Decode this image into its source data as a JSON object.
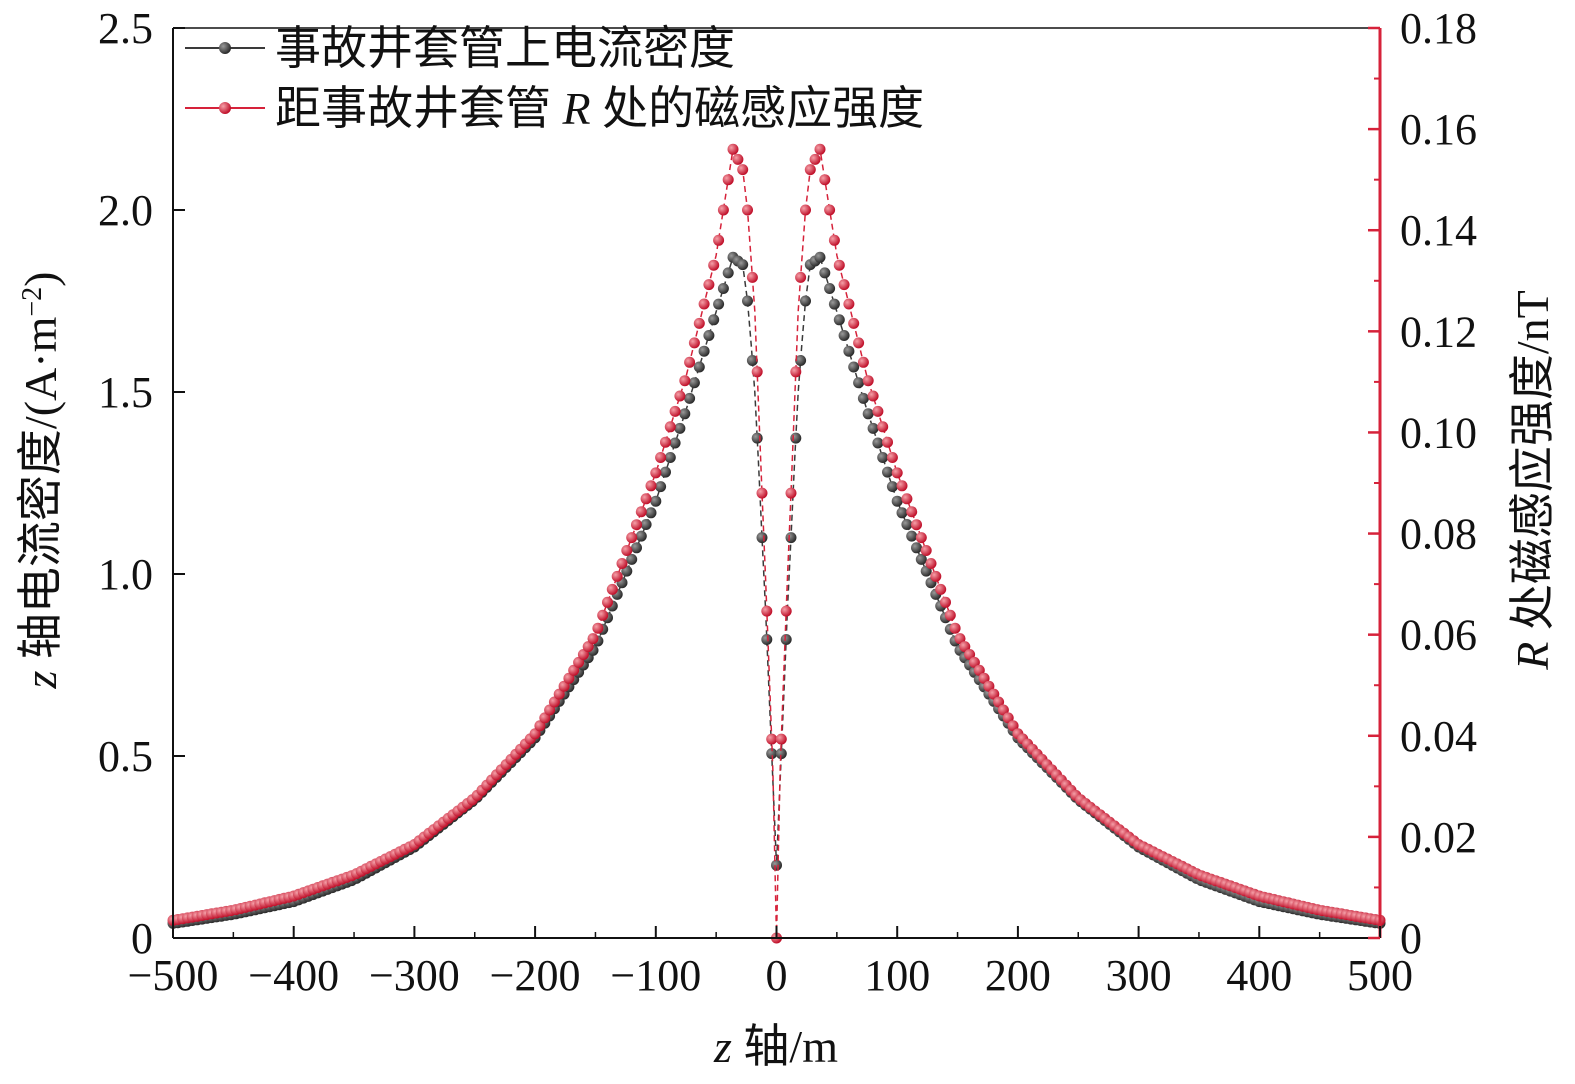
{
  "chart_data": {
    "type": "scatter",
    "x": {
      "label_var": "z",
      "label_rest": " 轴/m",
      "range": [
        -500,
        500
      ],
      "ticks": [
        -500,
        -400,
        -300,
        -200,
        -100,
        0,
        100,
        200,
        300,
        400,
        500
      ],
      "tick_labels": [
        "−500",
        "−400",
        "−300",
        "−200",
        "−100",
        "0",
        "100",
        "200",
        "300",
        "400",
        "500"
      ]
    },
    "y_left": {
      "label_var": "z",
      "label_rest": " 轴电流密度/(A·m",
      "label_sup": "−2",
      "label_close": ")",
      "range": [
        0,
        2.5
      ],
      "ticks": [
        0,
        0.5,
        1.0,
        1.5,
        2.0,
        2.5
      ],
      "tick_labels": [
        "0",
        "0.5",
        "1.0",
        "1.5",
        "2.0",
        "2.5"
      ],
      "color": "#222222"
    },
    "y_right": {
      "label_var": "R",
      "label_rest": " 处磁感应强度/nT",
      "range": [
        0,
        0.18
      ],
      "ticks": [
        0,
        0.02,
        0.04,
        0.06,
        0.08,
        0.1,
        0.12,
        0.14,
        0.16,
        0.18
      ],
      "tick_labels": [
        "0",
        "0.02",
        "0.04",
        "0.06",
        "0.08",
        "0.10",
        "0.12",
        "0.14",
        "0.16",
        "0.18"
      ],
      "color": "#d6223a"
    },
    "series": [
      {
        "name": "事故井套管上电流密度",
        "axis": "left",
        "color": "#3a3a3a",
        "x": [
          -500,
          -450,
          -400,
          -350,
          -300,
          -250,
          -200,
          -150,
          -100,
          -75,
          -50,
          -36,
          -28,
          -24,
          -21,
          -18,
          -15,
          -12,
          -9,
          -6,
          -3,
          0,
          3,
          6,
          9,
          12,
          15,
          18,
          21,
          24,
          28,
          36,
          50,
          75,
          100,
          150,
          200,
          250,
          300,
          350,
          400,
          450,
          500
        ],
        "y": [
          0.04,
          0.065,
          0.1,
          0.16,
          0.25,
          0.38,
          0.55,
          0.8,
          1.2,
          1.45,
          1.72,
          1.87,
          1.85,
          1.75,
          1.63,
          1.5,
          1.31,
          1.1,
          0.9,
          0.66,
          0.43,
          0.2,
          0.43,
          0.66,
          0.9,
          1.1,
          1.31,
          1.5,
          1.63,
          1.75,
          1.85,
          1.87,
          1.72,
          1.45,
          1.2,
          0.8,
          0.55,
          0.38,
          0.25,
          0.16,
          0.1,
          0.065,
          0.04
        ]
      },
      {
        "name": "距事故井套管 R 处的磁感应强度",
        "axis": "right",
        "color": "#d6223a",
        "x": [
          -500,
          -450,
          -400,
          -350,
          -300,
          -250,
          -200,
          -150,
          -100,
          -75,
          -50,
          -36,
          -28,
          -24,
          -21,
          -18,
          -15,
          -12,
          -9,
          -6,
          -3,
          0,
          3,
          6,
          9,
          12,
          15,
          18,
          21,
          24,
          28,
          36,
          50,
          75,
          100,
          150,
          200,
          250,
          300,
          350,
          400,
          450,
          500
        ],
        "y": [
          0.0035,
          0.0055,
          0.0083,
          0.0125,
          0.0185,
          0.0277,
          0.0404,
          0.06,
          0.092,
          0.111,
          0.135,
          0.156,
          0.152,
          0.144,
          0.134,
          0.124,
          0.106,
          0.088,
          0.071,
          0.052,
          0.033,
          0.0,
          0.033,
          0.052,
          0.071,
          0.088,
          0.106,
          0.124,
          0.134,
          0.144,
          0.152,
          0.156,
          0.135,
          0.111,
          0.092,
          0.06,
          0.0404,
          0.0277,
          0.0185,
          0.0125,
          0.0083,
          0.0055,
          0.0035
        ]
      }
    ],
    "legend": {
      "placement": "top-left"
    },
    "grid": false
  }
}
